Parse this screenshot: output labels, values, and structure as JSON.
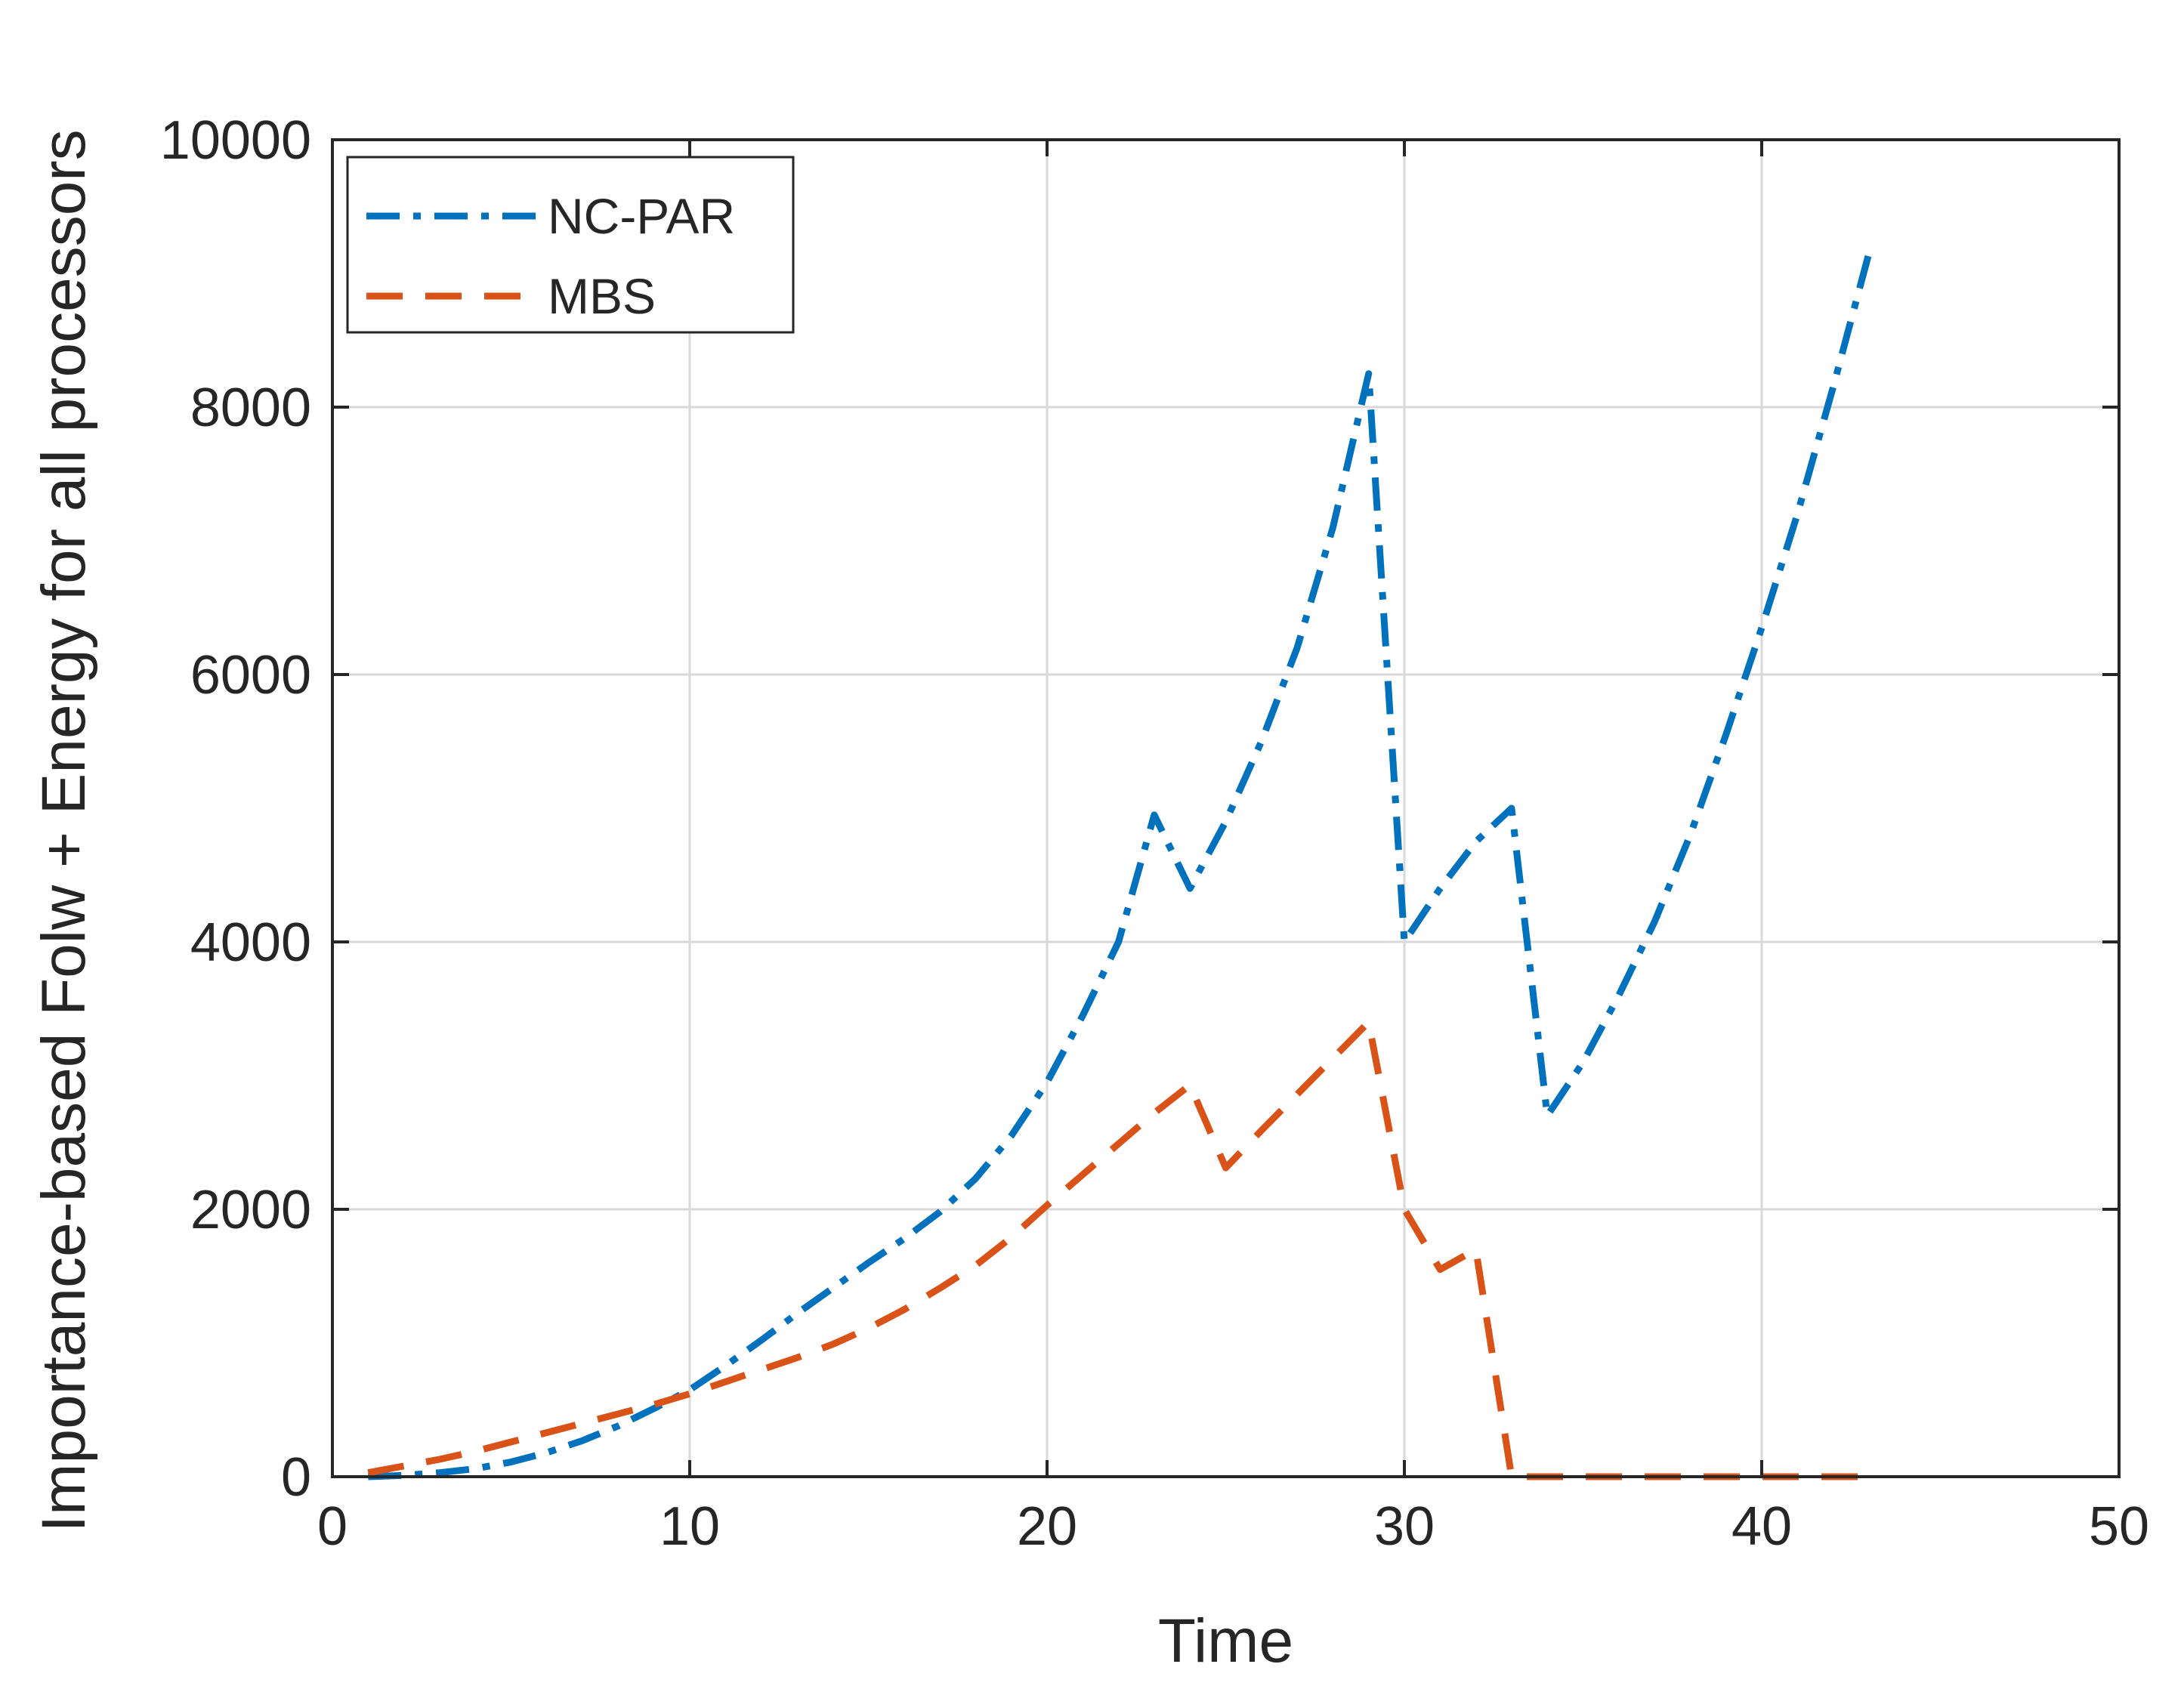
{
  "chart_data": {
    "type": "line",
    "title": "",
    "xlabel": "Time",
    "ylabel": "Importance-based Folw + Energy for all processors",
    "xlim": [
      0,
      50
    ],
    "ylim": [
      0,
      10000
    ],
    "xticks": [
      0,
      10,
      20,
      30,
      40,
      50
    ],
    "yticks": [
      0,
      2000,
      4000,
      6000,
      8000,
      10000
    ],
    "xtick_labels": [
      "0",
      "10",
      "20",
      "30",
      "40",
      "50"
    ],
    "ytick_labels": [
      "0",
      "2000",
      "4000",
      "6000",
      "8000",
      "10000"
    ],
    "grid": true,
    "legend_position": "top-left",
    "x": [
      1,
      2,
      3,
      4,
      5,
      6,
      7,
      8,
      9,
      10,
      11,
      12,
      13,
      14,
      15,
      16,
      17,
      18,
      19,
      20,
      21,
      22,
      23,
      24,
      25,
      26,
      27,
      28,
      29,
      30,
      31,
      32,
      33,
      34,
      35,
      36,
      37,
      38,
      39,
      40,
      41,
      42,
      43
    ],
    "series": [
      {
        "name": "NC-PAR",
        "color": "#0072BD",
        "style": "dash-dot",
        "values": [
          0,
          10,
          30,
          60,
          110,
          180,
          270,
          380,
          510,
          650,
          830,
          1020,
          1220,
          1410,
          1600,
          1780,
          1980,
          2230,
          2550,
          2950,
          3450,
          4000,
          4950,
          4400,
          4900,
          5500,
          6200,
          7100,
          8250,
          4000,
          4400,
          4750,
          5000,
          2700,
          3100,
          3600,
          4150,
          4800,
          5550,
          6350,
          7200,
          8150,
          9150
        ]
      },
      {
        "name": "MBS",
        "color": "#D95319",
        "style": "dashed",
        "values": [
          30,
          80,
          130,
          190,
          260,
          330,
          400,
          470,
          540,
          620,
          710,
          800,
          890,
          990,
          1110,
          1250,
          1410,
          1580,
          1790,
          2030,
          2260,
          2490,
          2720,
          2930,
          2310,
          2590,
          2860,
          3130,
          3400,
          2000,
          1550,
          1700,
          0,
          0,
          0,
          0,
          0,
          0,
          0,
          0,
          0,
          0,
          0
        ]
      }
    ]
  }
}
